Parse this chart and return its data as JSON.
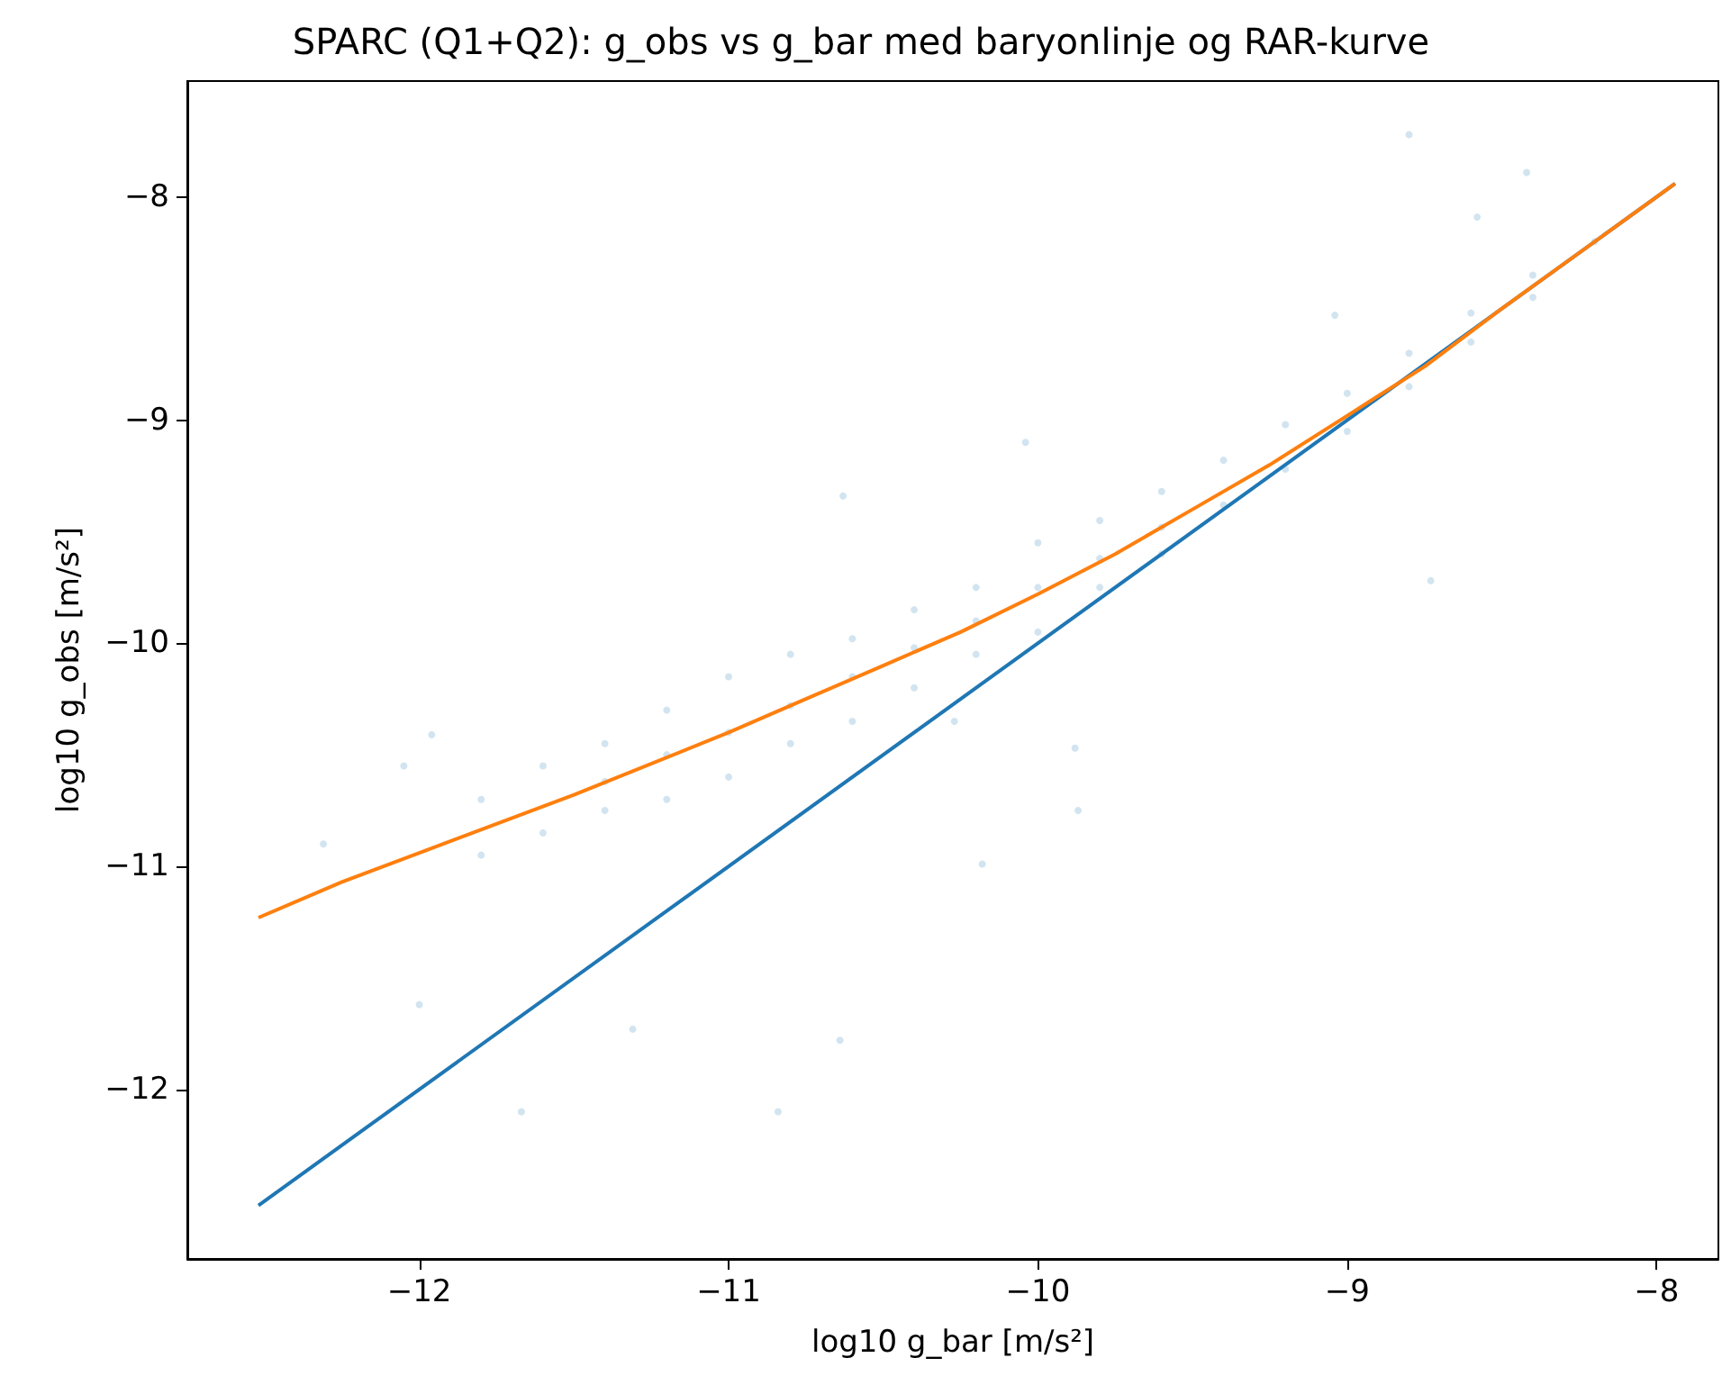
{
  "chart_data": {
    "type": "scatter",
    "title": "SPARC (Q1+Q2): g_obs vs g_bar med baryonlinje og RAR-kurve",
    "xlabel": "log10 g_bar [m/s²]",
    "ylabel": "log10 g_obs [m/s²]",
    "xlim": [
      -12.75,
      -7.8
    ],
    "ylim": [
      -12.76,
      -7.48
    ],
    "xticks": [
      -12,
      -11,
      -10,
      -9,
      -8
    ],
    "yticks": [
      -12,
      -11,
      -10,
      -9,
      -8
    ],
    "grid": false,
    "marker": "circle",
    "series": [
      {
        "color": "#1f77b4",
        "x": [
          -8.8,
          -8.42,
          -8.58,
          -9.04,
          -10.04,
          -10.63,
          -8.73,
          -9.88,
          -9.87,
          -10.64,
          -10.84,
          -11.67,
          -11.31,
          -12.0,
          -12.31,
          -12.05,
          -11.96,
          -10.27,
          -10.18,
          -11.8,
          -11.8,
          -11.6,
          -11.6,
          -11.4,
          -11.4,
          -11.4,
          -11.2,
          -11.2,
          -11.2,
          -11.0,
          -11.0,
          -11.0,
          -10.8,
          -10.8,
          -10.8,
          -10.6,
          -10.6,
          -10.6,
          -10.4,
          -10.4,
          -10.4,
          -10.2,
          -10.2,
          -10.2,
          -10.0,
          -10.0,
          -10.0,
          -9.8,
          -9.8,
          -9.8,
          -9.6,
          -9.6,
          -9.6,
          -9.4,
          -9.4,
          -9.2,
          -9.2,
          -9.0,
          -9.0,
          -8.8,
          -8.8,
          -8.6,
          -8.6,
          -8.4,
          -8.4,
          -8.2
        ],
        "values": [
          -7.72,
          -7.89,
          -8.09,
          -8.53,
          -9.1,
          -9.34,
          -9.72,
          -10.47,
          -10.75,
          -11.78,
          -12.1,
          -12.1,
          -11.73,
          -11.62,
          -10.9,
          -10.55,
          -10.41,
          -10.35,
          -10.99,
          -10.7,
          -10.95,
          -10.55,
          -10.85,
          -10.45,
          -10.75,
          -10.62,
          -10.3,
          -10.7,
          -10.5,
          -10.15,
          -10.6,
          -10.4,
          -10.05,
          -10.45,
          -10.28,
          -9.98,
          -10.35,
          -10.15,
          -9.85,
          -10.2,
          -10.02,
          -9.75,
          -10.05,
          -9.9,
          -9.55,
          -9.95,
          -9.75,
          -9.45,
          -9.75,
          -9.62,
          -9.32,
          -9.6,
          -9.48,
          -9.18,
          -9.38,
          -9.02,
          -9.22,
          -8.88,
          -9.05,
          -8.7,
          -8.85,
          -8.52,
          -8.65,
          -8.35,
          -8.45,
          -8.2
        ]
      },
      {
        "type": "line",
        "marker": "none",
        "color": "#1f77b4",
        "x": [
          -12.52,
          -7.94
        ],
        "values": [
          -12.52,
          -7.94
        ]
      },
      {
        "type": "line",
        "marker": "none",
        "color": "#ff7f0e",
        "x": [
          -12.52,
          -12.25,
          -12.0,
          -11.5,
          -11.0,
          -10.75,
          -10.5,
          -10.25,
          -10.0,
          -9.75,
          -9.5,
          -9.25,
          -9.0,
          -8.75,
          -8.5,
          -7.94
        ],
        "values": [
          -11.23,
          -11.07,
          -10.94,
          -10.68,
          -10.4,
          -10.25,
          -10.1,
          -9.95,
          -9.78,
          -9.6,
          -9.4,
          -9.2,
          -8.98,
          -8.76,
          -8.5,
          -7.94
        ]
      }
    ]
  }
}
